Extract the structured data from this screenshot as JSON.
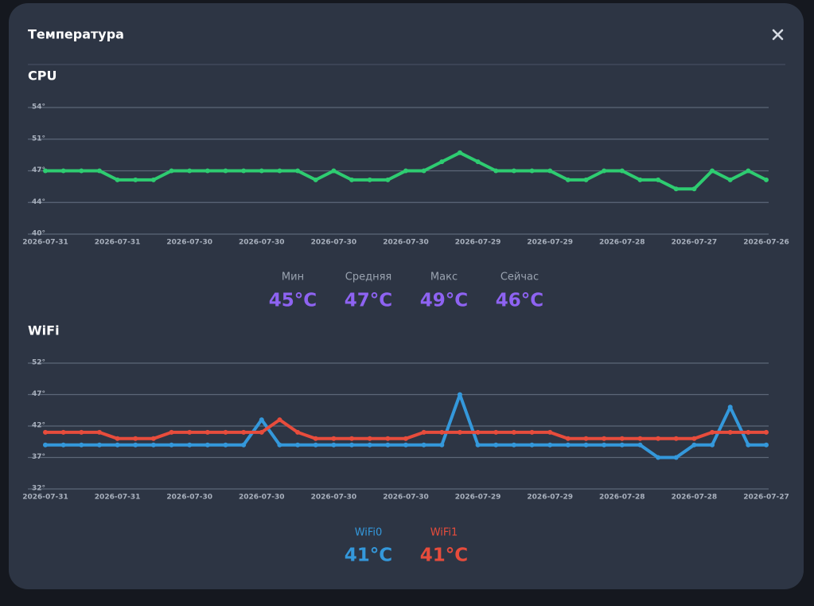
{
  "dialog": {
    "title": "Температура",
    "cpu_stats": [
      {
        "label": "Мин",
        "value": "45°C"
      },
      {
        "label": "Средняя",
        "value": "47°C"
      },
      {
        "label": "Макс",
        "value": "49°C"
      },
      {
        "label": "Сейчас",
        "value": "46°C"
      }
    ],
    "wifi_stats": [
      "41°C",
      "41°C"
    ]
  },
  "chart_data": [
    {
      "type": "line",
      "title": "CPU",
      "color": "#2ecc71",
      "grid": true,
      "categories": [
        "2026-07-31",
        null,
        null,
        null,
        "2026-07-31",
        null,
        null,
        null,
        "2026-07-30",
        null,
        null,
        null,
        "2026-07-30",
        null,
        null,
        null,
        "2026-07-30",
        null,
        null,
        null,
        "2026-07-30",
        null,
        null,
        null,
        "2026-07-29",
        null,
        null,
        null,
        "2026-07-29",
        null,
        null,
        null,
        "2026-07-28",
        null,
        null,
        null,
        "2026-07-27",
        null,
        null,
        null,
        "2026-07-26"
      ],
      "values": [
        47,
        47,
        47,
        47,
        46,
        46,
        46,
        47,
        47,
        47,
        47,
        47,
        47,
        47,
        47,
        46,
        47,
        46,
        46,
        46,
        47,
        47,
        48,
        49,
        48,
        47,
        47,
        47,
        47,
        46,
        46,
        47,
        47,
        46,
        46,
        45,
        45,
        47,
        46,
        47,
        46
      ],
      "ylim": [
        40,
        54
      ],
      "yticks": [
        {
          "value": 40,
          "label": "40°"
        },
        {
          "value": 43.5,
          "label": "44°"
        },
        {
          "value": 47,
          "label": "47°"
        },
        {
          "value": 50.5,
          "label": "51°"
        },
        {
          "value": 54,
          "label": "54°"
        }
      ]
    },
    {
      "type": "line",
      "title": "WiFi",
      "grid": true,
      "categories": [
        "2026-07-31",
        null,
        null,
        null,
        "2026-07-31",
        null,
        null,
        null,
        "2026-07-30",
        null,
        null,
        null,
        "2026-07-30",
        null,
        null,
        null,
        "2026-07-30",
        null,
        null,
        null,
        "2026-07-30",
        null,
        null,
        null,
        "2026-07-29",
        null,
        null,
        null,
        "2026-07-29",
        null,
        null,
        null,
        "2026-07-28",
        null,
        null,
        null,
        "2026-07-28",
        null,
        null,
        null,
        "2026-07-27"
      ],
      "series": [
        {
          "name": "WiFi0",
          "color": "#3498db",
          "values": [
            39,
            39,
            39,
            39,
            39,
            39,
            39,
            39,
            39,
            39,
            39,
            39,
            43,
            39,
            39,
            39,
            39,
            39,
            39,
            39,
            39,
            39,
            39,
            47,
            39,
            39,
            39,
            39,
            39,
            39,
            39,
            39,
            39,
            39,
            37,
            37,
            39,
            39,
            45,
            39,
            39
          ]
        },
        {
          "name": "WiFi1",
          "color": "#e74c3c",
          "values": [
            41,
            41,
            41,
            41,
            40,
            40,
            40,
            41,
            41,
            41,
            41,
            41,
            41,
            43,
            41,
            40,
            40,
            40,
            40,
            40,
            40,
            41,
            41,
            41,
            41,
            41,
            41,
            41,
            41,
            40,
            40,
            40,
            40,
            40,
            40,
            40,
            40,
            41,
            41,
            41,
            41
          ]
        }
      ],
      "ylim": [
        32,
        52
      ],
      "yticks": [
        {
          "value": 32,
          "label": "32°"
        },
        {
          "value": 37,
          "label": "37°"
        },
        {
          "value": 42,
          "label": "42°"
        },
        {
          "value": 47,
          "label": "47°"
        },
        {
          "value": 52,
          "label": "52°"
        }
      ]
    }
  ]
}
